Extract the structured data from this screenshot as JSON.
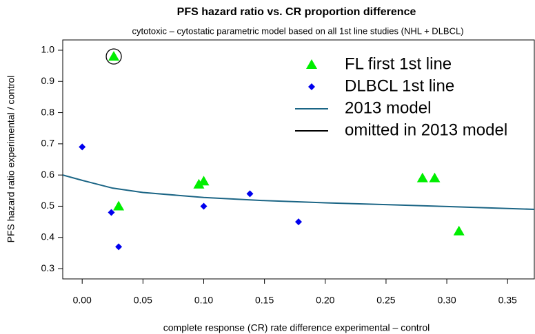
{
  "chart_data": {
    "type": "scatter",
    "title": "PFS hazard ratio vs. CR proportion difference",
    "subtitle": "cytotoxic – cytostatic parametric model based on all 1st line studies (NHL + DLBCL)",
    "xlabel": "complete response (CR) rate difference experimental – control",
    "ylabel": "PFS hazard ratio experimental / control",
    "xlim": [
      -0.016,
      0.372
    ],
    "ylim": [
      0.267,
      1.033
    ],
    "xticks": [
      {
        "value": 0,
        "label": "0.00"
      },
      0.05,
      {
        "value": 0.1,
        "label": "0.10"
      },
      0.15,
      {
        "value": 0.2,
        "label": "0.20"
      },
      0.25,
      {
        "value": 0.3,
        "label": "0.30"
      },
      0.35
    ],
    "yticks": [
      0.3,
      0.4,
      0.5,
      0.6,
      0.7,
      0.8,
      0.9,
      {
        "value": 1,
        "label": "1.0"
      }
    ],
    "grid": false,
    "legend": "top-right",
    "series": [
      {
        "name": "FL first 1st line",
        "color": "#00ee00",
        "marker": "triangle",
        "x": [
          0.026,
          0.03,
          0.096,
          0.1,
          0.28,
          0.29,
          0.31
        ],
        "values": [
          0.98,
          0.5,
          0.57,
          0.58,
          0.59,
          0.59,
          0.42
        ]
      },
      {
        "name": "DLBCL 1st line",
        "color": "#0000ee",
        "marker": "diamond",
        "x": [
          0.0,
          0.024,
          0.03,
          0.1,
          0.138,
          0.178
        ],
        "values": [
          0.69,
          0.48,
          0.37,
          0.5,
          0.54,
          0.45
        ]
      },
      {
        "name": "2013 model",
        "color": "#1b6585",
        "marker": "line",
        "x": [
          -0.016,
          0,
          0.025,
          0.05,
          0.1,
          0.15,
          0.2,
          0.25,
          0.3,
          0.372
        ],
        "values": [
          0.6,
          0.583,
          0.558,
          0.544,
          0.528,
          0.518,
          0.511,
          0.505,
          0.499,
          0.49
        ]
      },
      {
        "name": "omitted in 2013 model",
        "color": "#000000",
        "marker": "circle",
        "x": [
          0.026
        ],
        "values": [
          0.98
        ]
      }
    ]
  }
}
